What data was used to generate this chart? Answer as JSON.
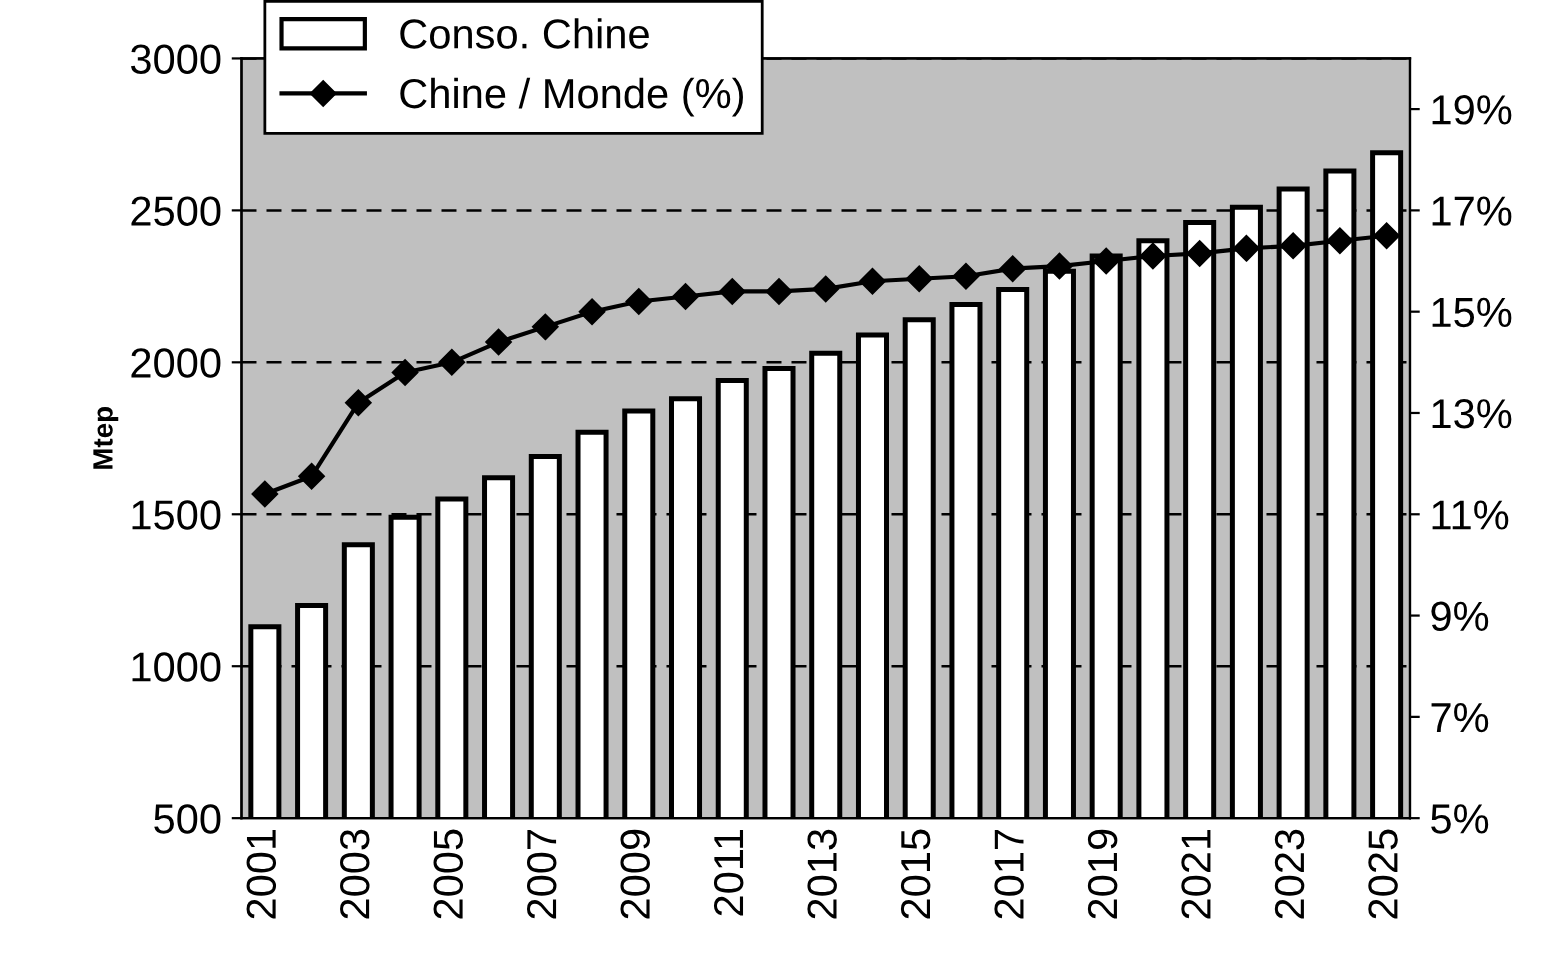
{
  "chart_data": {
    "type": "bar",
    "ylabel": "Mtep",
    "categories": [
      "2001",
      null,
      "2003",
      null,
      "2005",
      null,
      "2007",
      null,
      "2009",
      null,
      "2011",
      null,
      "2013",
      null,
      "2015",
      null,
      "2017",
      null,
      "2019",
      null,
      "2021",
      null,
      "2023",
      null,
      "2025"
    ],
    "series": [
      {
        "name": "Conso. Chine",
        "color": "#ffffff",
        "values": [
          1130,
          1200,
          1400,
          1490,
          1550,
          1620,
          1690,
          1770,
          1840,
          1880,
          1940,
          1980,
          2030,
          2090,
          2140,
          2190,
          2240,
          2300,
          2350,
          2400,
          2460,
          2510,
          2570,
          2630,
          2690
        ]
      },
      {
        "name": "Chine / Monde (%)",
        "type": "line",
        "axis": "y2",
        "color": "#000000",
        "marker": "diamond",
        "values": [
          11.4,
          11.75,
          13.2,
          13.8,
          14.0,
          14.4,
          14.7,
          15.0,
          15.2,
          15.3,
          15.4,
          15.4,
          15.45,
          15.6,
          15.65,
          15.7,
          15.85,
          15.9,
          16.0,
          16.1,
          16.15,
          16.25,
          16.3,
          16.4,
          16.5
        ]
      }
    ],
    "ylim": [
      500,
      3000
    ],
    "yticks": [
      500,
      1000,
      1500,
      2000,
      2500,
      3000
    ],
    "y2lim": [
      5,
      20
    ],
    "y2ticks": [
      {
        "value": 5,
        "label": "5%"
      },
      {
        "value": 7,
        "label": "7%"
      },
      {
        "value": 9,
        "label": "9%"
      },
      {
        "value": 11,
        "label": "11%"
      },
      {
        "value": 13,
        "label": "13%"
      },
      {
        "value": 15,
        "label": "15%"
      },
      {
        "value": 17,
        "label": "17%"
      },
      {
        "value": 19,
        "label": "19%"
      }
    ],
    "grid": "y",
    "legend": "top left"
  }
}
